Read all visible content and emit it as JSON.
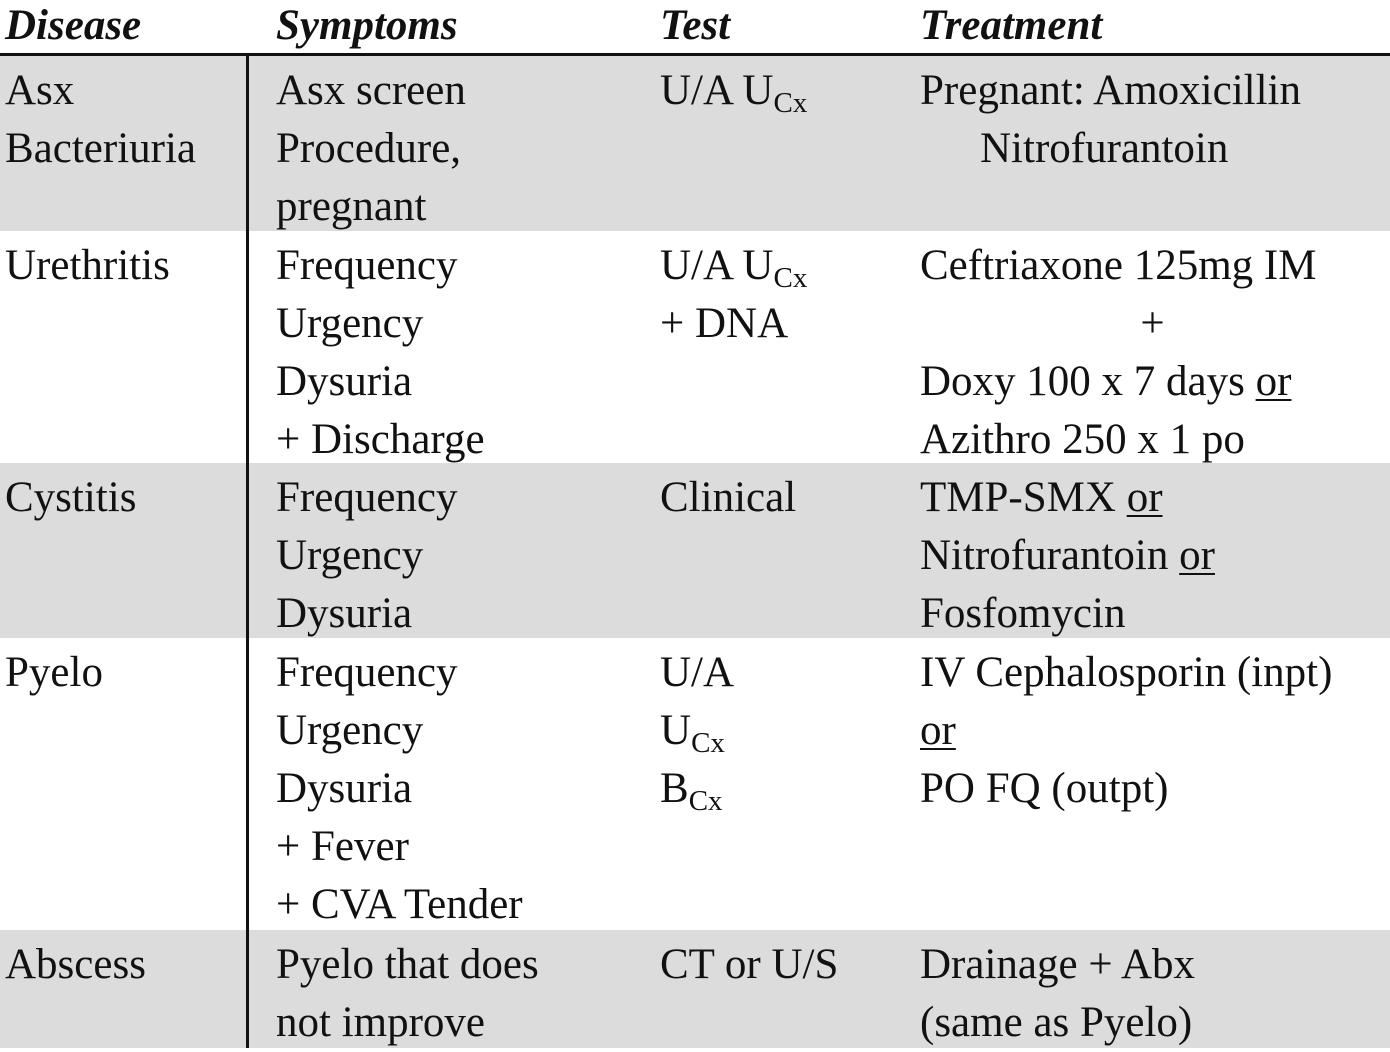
{
  "headers": {
    "disease": "Disease",
    "symptoms": "Symptoms",
    "test": "Test",
    "treatment": "Treatment"
  },
  "rows": [
    {
      "disease": [
        "Asx",
        "Bacteriuria"
      ],
      "symptoms": [
        "Asx screen",
        "Procedure,",
        "pregnant"
      ],
      "test": [
        {
          "main": "U/A U",
          "sub": "Cx"
        }
      ],
      "treatment": [
        {
          "text": "Pregnant: Amoxicillin"
        },
        {
          "text": "Nitrofurantoin"
        }
      ]
    },
    {
      "disease": [
        "Urethritis"
      ],
      "symptoms": [
        "Frequency",
        "Urgency",
        "Dysuria",
        "+ Discharge"
      ],
      "test": [
        {
          "main": "U/A U",
          "sub": "Cx"
        },
        {
          "main": "+ DNA"
        }
      ],
      "treatment": [
        {
          "text": "Ceftriaxone 125mg IM"
        },
        {
          "text": "+"
        },
        {
          "text": "Doxy 100 x 7 days ",
          "u": "or"
        },
        {
          "text": "Azithro 250 x 1 po"
        }
      ]
    },
    {
      "disease": [
        "Cystitis"
      ],
      "symptoms": [
        "Frequency",
        "Urgency",
        "Dysuria"
      ],
      "test": [
        {
          "main": "Clinical"
        }
      ],
      "treatment": [
        {
          "text": "TMP-SMX ",
          "u": "or"
        },
        {
          "text": "Nitrofurantoin ",
          "u": "or"
        },
        {
          "text": "Fosfomycin"
        }
      ]
    },
    {
      "disease": [
        "Pyelo"
      ],
      "symptoms": [
        "Frequency",
        "Urgency",
        "Dysuria",
        "+ Fever",
        "+ CVA Tender"
      ],
      "test": [
        {
          "main": "U/A"
        },
        {
          "main": "U",
          "sub": "Cx"
        },
        {
          "main": "B",
          "sub": "Cx"
        }
      ],
      "treatment": [
        {
          "text": "IV Cephalosporin (inpt)"
        },
        {
          "text": "",
          "u": "or"
        },
        {
          "text": "PO FQ (outpt)"
        }
      ]
    },
    {
      "disease": [
        "Abscess"
      ],
      "symptoms": [
        "Pyelo that does",
        "not improve"
      ],
      "test": [
        {
          "main": "CT or U/S"
        }
      ],
      "treatment": [
        {
          "text": "Drainage + Abx"
        },
        {
          "text": "(same as Pyelo)"
        }
      ]
    }
  ]
}
